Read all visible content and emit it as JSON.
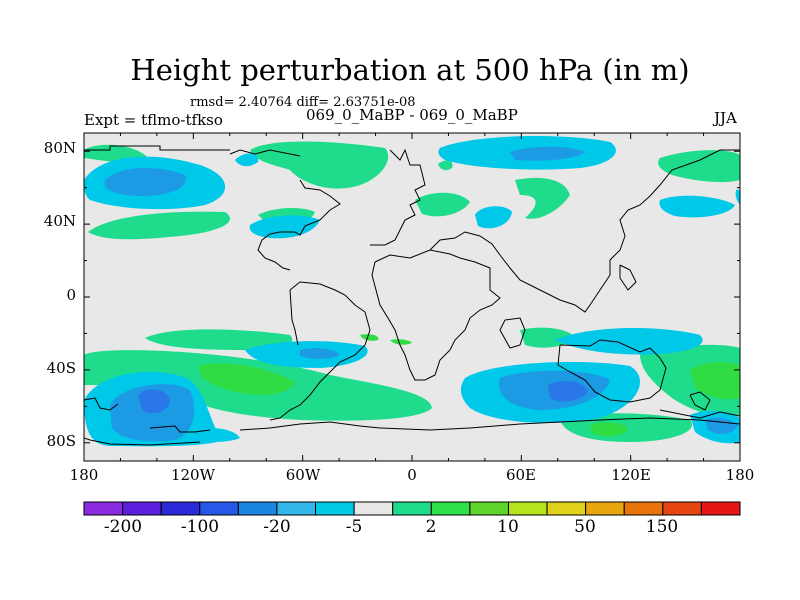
{
  "title": "Height perturbation at 500 hPa (in m)",
  "stats": "rmsd= 2.40764 diff= 2.63751e-08",
  "expt": "Expt = tflmo-tfkso",
  "runs": "069_0_MaBP - 069_0_MaBP",
  "season": "JJA",
  "axes": {
    "y_ticks": [
      "80N",
      "40N",
      "0",
      "40S",
      "80S"
    ],
    "x_ticks": [
      "180",
      "120W",
      "60W",
      "0",
      "60E",
      "120E",
      "180"
    ],
    "lat_range": [
      -90,
      90
    ],
    "lon_range": [
      -180,
      180
    ]
  },
  "colorbar": {
    "colors": [
      "#8a2be2",
      "#5c1fe0",
      "#2a2ad8",
      "#2757e6",
      "#1b86e0",
      "#35b6ea",
      "#00cbe6",
      "#e8e8e8",
      "#1fdc8c",
      "#2fe04a",
      "#5fd42a",
      "#b5e31e",
      "#e0d21a",
      "#eaa60e",
      "#e9730b",
      "#e64411",
      "#e51616"
    ],
    "labels": [
      "-200",
      "-100",
      "-20",
      "-5",
      "2",
      "10",
      "50",
      "150"
    ]
  },
  "field_colors": {
    "background": "#e8e8e8",
    "light_blue": "#00c8e8",
    "mid_blue": "#1c9be4",
    "deep_blue": "#2a78e8",
    "green_light": "#1fdc8c",
    "green": "#2fdc44",
    "coast": "#000000"
  }
}
